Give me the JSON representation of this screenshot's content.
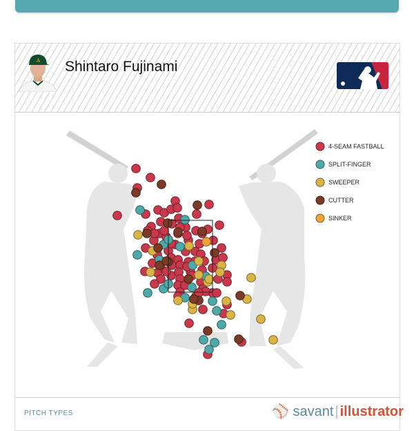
{
  "player": {
    "name": "Shintaro Fujinami"
  },
  "footer": {
    "section_label": "PITCH TYPES",
    "logo_savant": "savant",
    "logo_illustrator": "illustrator"
  },
  "chart_data": {
    "type": "scatter",
    "title": "",
    "legend_position": "right",
    "grid": false,
    "series": [
      {
        "name": "4-SEAM FASTBALL",
        "color": "#c9394b",
        "points": [
          [
            -1.58,
            5.08
          ],
          [
            -1.16,
            4.82
          ],
          [
            -1.54,
            4.52
          ],
          [
            -2.12,
            3.72
          ],
          [
            -1.3,
            3.76
          ],
          [
            -0.44,
            4.14
          ],
          [
            0.54,
            4.04
          ],
          [
            0.18,
            3.76
          ],
          [
            0.84,
            3.44
          ],
          [
            0.9,
            2.78
          ],
          [
            -1.3,
            2.78
          ],
          [
            -1.32,
            2.1
          ],
          [
            -0.04,
            0.6
          ],
          [
            1.06,
            1.14
          ],
          [
            0.96,
            0.88
          ],
          [
            0.5,
            -0.3
          ],
          [
            1.48,
            0.06
          ],
          [
            0.36,
            1.0
          ],
          [
            -0.94,
            3.88
          ],
          [
            -0.76,
            3.8
          ],
          [
            -0.56,
            3.9
          ],
          [
            -0.38,
            3.94
          ],
          [
            -0.34,
            3.64
          ],
          [
            -0.54,
            3.48
          ],
          [
            -0.86,
            3.54
          ],
          [
            -1.14,
            3.4
          ],
          [
            -1.24,
            3.28
          ],
          [
            -1.06,
            3.0
          ],
          [
            -0.9,
            3.2
          ],
          [
            -0.7,
            3.1
          ],
          [
            -0.36,
            3.2
          ],
          [
            -0.14,
            3.38
          ],
          [
            0.16,
            3.28
          ],
          [
            0.5,
            3.32
          ],
          [
            0.34,
            3.2
          ],
          [
            -0.06,
            3.0
          ],
          [
            0.26,
            2.9
          ],
          [
            0.66,
            3.0
          ],
          [
            -0.44,
            2.88
          ],
          [
            -0.64,
            2.7
          ],
          [
            -0.14,
            2.68
          ],
          [
            0.14,
            2.68
          ],
          [
            0.3,
            2.6
          ],
          [
            -0.96,
            2.58
          ],
          [
            0.74,
            2.44
          ],
          [
            0.94,
            2.5
          ],
          [
            -0.56,
            2.5
          ],
          [
            -0.36,
            2.44
          ],
          [
            -0.06,
            2.38
          ],
          [
            0.14,
            2.4
          ],
          [
            0.4,
            2.4
          ],
          [
            -1.1,
            2.34
          ],
          [
            -0.86,
            2.2
          ],
          [
            -0.54,
            2.28
          ],
          [
            -0.3,
            2.28
          ],
          [
            0.0,
            2.1
          ],
          [
            0.34,
            2.14
          ],
          [
            0.64,
            2.2
          ],
          [
            1.06,
            2.0
          ],
          [
            -0.96,
            2.06
          ],
          [
            -0.56,
            1.98
          ],
          [
            -0.34,
            2.08
          ],
          [
            0.04,
            1.98
          ],
          [
            0.8,
            1.88
          ],
          [
            1.06,
            1.8
          ],
          [
            -0.86,
            1.88
          ],
          [
            -1.04,
            1.74
          ],
          [
            -0.3,
            1.88
          ],
          [
            0.3,
            1.8
          ],
          [
            -0.36,
            1.7
          ],
          [
            -0.16,
            1.7
          ],
          [
            0.36,
            1.6
          ],
          [
            0.64,
            1.48
          ],
          [
            0.76,
            1.48
          ],
          [
            -0.3,
            1.5
          ],
          [
            0.16,
            1.38
          ],
          [
            0.44,
            1.52
          ],
          [
            -0.36,
            1.38
          ],
          [
            0.24,
            1.48
          ],
          [
            -0.7,
            2.1
          ],
          [
            -0.1,
            2.24
          ],
          [
            -0.56,
            2.9
          ],
          [
            -0.76,
            3.28
          ],
          [
            -1.04,
            3.2
          ],
          [
            -0.1,
            3.14
          ],
          [
            -0.3,
            3.38
          ]
        ]
      },
      {
        "name": "SPLIT-FINGER",
        "color": "#4ea9a8",
        "points": [
          [
            -1.46,
            3.88
          ],
          [
            -1.54,
            2.58
          ],
          [
            -1.24,
            1.48
          ],
          [
            -0.78,
            2.88
          ],
          [
            -0.9,
            2.44
          ],
          [
            -0.3,
            2.82
          ],
          [
            -0.16,
            3.6
          ],
          [
            0.44,
            1.96
          ],
          [
            0.04,
            1.64
          ],
          [
            -0.78,
            1.6
          ],
          [
            -0.16,
            1.34
          ],
          [
            0.64,
            1.24
          ],
          [
            0.76,
            0.96
          ],
          [
            0.9,
            0.56
          ],
          [
            0.38,
            0.12
          ],
          [
            0.7,
            0.04
          ],
          [
            0.54,
            -0.16
          ],
          [
            -0.64,
            1.74
          ],
          [
            0.06,
            2.28
          ],
          [
            -0.64,
            3.02
          ]
        ]
      },
      {
        "name": "SWEEPER",
        "color": "#dbb447",
        "points": [
          [
            -1.52,
            3.16
          ],
          [
            1.76,
            1.92
          ],
          [
            1.64,
            1.3
          ],
          [
            2.04,
            0.72
          ],
          [
            2.4,
            0.12
          ],
          [
            1.16,
            0.84
          ],
          [
            0.06,
            1.0
          ],
          [
            -0.36,
            1.26
          ],
          [
            0.9,
            2.28
          ],
          [
            0.86,
            2.08
          ],
          [
            -0.04,
            2.84
          ],
          [
            1.04,
            1.24
          ],
          [
            -1.16,
            2.08
          ],
          [
            0.5,
            1.8
          ],
          [
            -1.1,
            2.7
          ],
          [
            0.24,
            2.4
          ],
          [
            0.24,
            2.0
          ],
          [
            0.54,
            1.88
          ],
          [
            0.06,
            1.16
          ]
        ]
      },
      {
        "name": "CUTTER",
        "color": "#7b3b27",
        "points": [
          [
            -0.84,
            4.62
          ],
          [
            -1.58,
            4.38
          ],
          [
            0.2,
            4.02
          ],
          [
            -1.26,
            3.2
          ],
          [
            1.44,
            1.4
          ],
          [
            0.5,
            0.38
          ],
          [
            1.4,
            0.14
          ],
          [
            0.7,
            2.64
          ],
          [
            -0.66,
            3.5
          ],
          [
            -0.36,
            3.24
          ],
          [
            0.34,
            3.26
          ],
          [
            -0.94,
            2.78
          ],
          [
            -0.9,
            2.28
          ],
          [
            -0.64,
            2.38
          ],
          [
            -0.06,
            1.88
          ],
          [
            0.24,
            1.26
          ],
          [
            0.1,
            1.3
          ],
          [
            -0.7,
            2.4
          ]
        ]
      },
      {
        "name": "SINKER",
        "color": "#eea33a",
        "points": [
          [
            0.46,
            2.96
          ]
        ]
      }
    ]
  }
}
